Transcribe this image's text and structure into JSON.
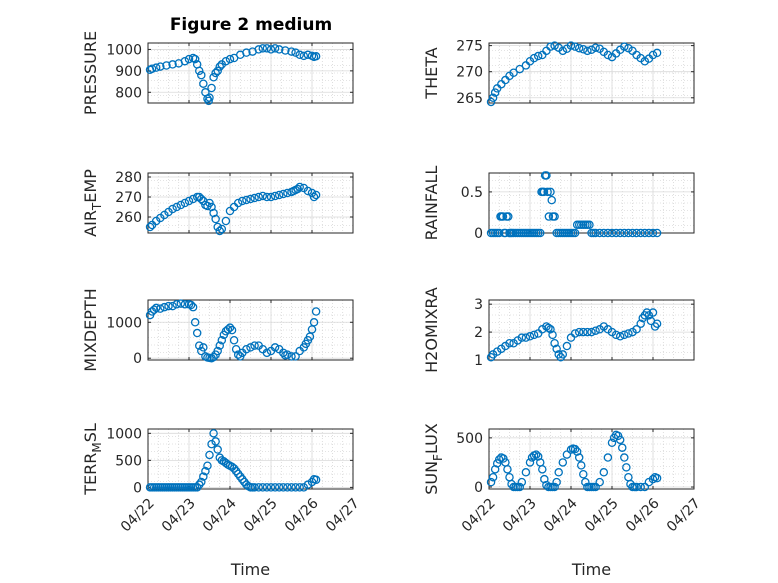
{
  "figure": {
    "title": "Figure 2 medium",
    "colors": {
      "marker": "#0072BD",
      "axis": "#262626",
      "grid": "#c8c8c8",
      "background": "#ffffff"
    }
  },
  "chart_data": [
    {
      "type": "scatter",
      "ylabel_parts": [
        "PRESSURE"
      ],
      "xlabel": "",
      "ylim": [
        750,
        1030
      ],
      "yticks": [
        800,
        900,
        1000
      ],
      "xlim": [
        0,
        5
      ],
      "xticklabels": [],
      "grid": "on",
      "marker": "open-circle",
      "x": [
        0.05,
        0.1,
        0.2,
        0.3,
        0.45,
        0.6,
        0.75,
        0.9,
        1.0,
        1.1,
        1.15,
        1.2,
        1.25,
        1.3,
        1.35,
        1.4,
        1.45,
        1.48,
        1.5,
        1.55,
        1.6,
        1.65,
        1.7,
        1.75,
        1.8,
        1.9,
        2.0,
        2.1,
        2.25,
        2.4,
        2.55,
        2.7,
        2.8,
        2.9,
        3.0,
        3.1,
        3.2,
        3.35,
        3.5,
        3.6,
        3.7,
        3.8,
        3.9,
        4.0,
        4.05,
        4.1
      ],
      "y": [
        905,
        910,
        915,
        920,
        925,
        930,
        935,
        945,
        955,
        960,
        955,
        930,
        900,
        880,
        840,
        800,
        770,
        760,
        775,
        820,
        870,
        890,
        900,
        920,
        930,
        945,
        955,
        960,
        975,
        985,
        990,
        1000,
        1005,
        1005,
        1000,
        1005,
        1000,
        995,
        990,
        985,
        975,
        970,
        975,
        970,
        965,
        968
      ]
    },
    {
      "type": "scatter",
      "ylabel_parts": [
        "THETA"
      ],
      "xlabel": "",
      "ylim": [
        264,
        275.5
      ],
      "yticks": [
        265,
        270,
        275
      ],
      "xlim": [
        0,
        5
      ],
      "xticklabels": [],
      "grid": "on",
      "marker": "open-circle",
      "x": [
        0.05,
        0.1,
        0.15,
        0.2,
        0.3,
        0.4,
        0.5,
        0.6,
        0.75,
        0.9,
        1.0,
        1.1,
        1.2,
        1.3,
        1.4,
        1.5,
        1.6,
        1.7,
        1.8,
        1.9,
        2.0,
        2.1,
        2.2,
        2.3,
        2.4,
        2.5,
        2.6,
        2.7,
        2.8,
        2.9,
        3.0,
        3.1,
        3.2,
        3.3,
        3.4,
        3.5,
        3.6,
        3.7,
        3.8,
        3.9,
        4.0,
        4.1
      ],
      "y": [
        264.2,
        265,
        266,
        266.8,
        267.6,
        268.4,
        269.2,
        269.8,
        270.5,
        271.2,
        272,
        272.6,
        273,
        273.2,
        274,
        274.8,
        275,
        274.6,
        274,
        274.4,
        275,
        274.8,
        274.5,
        274.3,
        274,
        274.2,
        274.6,
        274.4,
        273.8,
        273.2,
        272.8,
        273.5,
        274.2,
        274.8,
        274.5,
        274,
        273.2,
        272.6,
        272,
        272.5,
        273.2,
        273.6
      ]
    },
    {
      "type": "scatter",
      "ylabel_parts": [
        "AIR",
        "T",
        "EMP"
      ],
      "xlabel": "",
      "ylim": [
        252,
        282
      ],
      "yticks": [
        260,
        270,
        280
      ],
      "xlim": [
        0,
        5
      ],
      "xticklabels": [],
      "grid": "on",
      "marker": "open-circle",
      "x": [
        0.05,
        0.1,
        0.2,
        0.3,
        0.4,
        0.5,
        0.6,
        0.7,
        0.8,
        0.9,
        1.0,
        1.1,
        1.2,
        1.25,
        1.3,
        1.35,
        1.4,
        1.45,
        1.5,
        1.55,
        1.6,
        1.65,
        1.7,
        1.75,
        1.8,
        1.9,
        2.0,
        2.1,
        2.2,
        2.3,
        2.4,
        2.5,
        2.6,
        2.7,
        2.8,
        2.9,
        3.0,
        3.1,
        3.2,
        3.3,
        3.4,
        3.5,
        3.55,
        3.6,
        3.65,
        3.7,
        3.8,
        3.9,
        4.0,
        4.05,
        4.1
      ],
      "y": [
        255,
        256,
        258,
        259.5,
        261,
        262.5,
        264,
        265,
        266,
        267,
        268,
        269,
        270,
        270,
        269,
        268,
        266,
        265.5,
        267,
        265,
        262,
        259,
        255,
        253,
        254,
        258,
        263,
        265,
        267,
        268,
        268.5,
        269,
        269.5,
        270,
        270.5,
        270,
        270,
        270.5,
        271,
        271.5,
        272,
        272.5,
        273,
        273.5,
        274,
        275,
        274.5,
        273,
        272,
        270,
        271
      ]
    },
    {
      "type": "scatter",
      "ylabel_parts": [
        "RAINFALL"
      ],
      "xlabel": "",
      "ylim": [
        0,
        0.73
      ],
      "yticks": [
        0,
        0.5
      ],
      "xlim": [
        0,
        5
      ],
      "xticklabels": [],
      "grid": "on",
      "marker": "open-circle",
      "x": [
        0.05,
        0.1,
        0.15,
        0.2,
        0.25,
        0.28,
        0.31,
        0.34,
        0.37,
        0.4,
        0.43,
        0.47,
        0.5,
        0.53,
        0.56,
        0.6,
        0.65,
        0.7,
        0.75,
        0.8,
        0.85,
        0.9,
        0.95,
        1.0,
        1.05,
        1.1,
        1.15,
        1.2,
        1.25,
        1.28,
        1.31,
        1.34,
        1.37,
        1.4,
        1.43,
        1.46,
        1.5,
        1.53,
        1.56,
        1.6,
        1.65,
        1.7,
        1.75,
        1.8,
        1.85,
        1.9,
        1.95,
        2.0,
        2.05,
        2.1,
        2.15,
        2.2,
        2.25,
        2.3,
        2.35,
        2.4,
        2.45,
        2.5,
        2.55,
        2.6,
        2.7,
        2.8,
        2.9,
        3.0,
        3.1,
        3.2,
        3.3,
        3.4,
        3.5,
        3.6,
        3.7,
        3.8,
        3.9,
        4.0,
        4.1
      ],
      "y": [
        0,
        0,
        0,
        0,
        0,
        0.2,
        0.2,
        0.2,
        0,
        0,
        0.2,
        0.2,
        0,
        0,
        0,
        0,
        0,
        0,
        0,
        0,
        0,
        0,
        0,
        0,
        0,
        0,
        0,
        0,
        0,
        0.5,
        0.5,
        0.5,
        0.7,
        0.7,
        0.5,
        0.2,
        0.5,
        0.4,
        0.2,
        0.2,
        0,
        0,
        0,
        0,
        0,
        0,
        0,
        0,
        0,
        0,
        0.1,
        0.1,
        0.1,
        0.1,
        0.1,
        0.1,
        0.1,
        0,
        0,
        0,
        0,
        0,
        0,
        0,
        0,
        0,
        0,
        0,
        0,
        0,
        0,
        0,
        0,
        0,
        0
      ]
    },
    {
      "type": "scatter",
      "ylabel_parts": [
        "MIXDEPTH"
      ],
      "xlabel": "",
      "ylim": [
        -50,
        1620
      ],
      "yticks": [
        0,
        1000
      ],
      "xlim": [
        0,
        5
      ],
      "xticklabels": [],
      "grid": "on",
      "marker": "open-circle",
      "x": [
        0.05,
        0.1,
        0.15,
        0.2,
        0.3,
        0.4,
        0.5,
        0.6,
        0.7,
        0.8,
        0.9,
        1.0,
        1.05,
        1.1,
        1.15,
        1.2,
        1.25,
        1.3,
        1.35,
        1.4,
        1.45,
        1.5,
        1.55,
        1.6,
        1.65,
        1.7,
        1.75,
        1.8,
        1.85,
        1.9,
        1.95,
        2.0,
        2.05,
        2.1,
        2.15,
        2.2,
        2.25,
        2.3,
        2.4,
        2.5,
        2.6,
        2.7,
        2.8,
        2.9,
        3.0,
        3.1,
        3.2,
        3.3,
        3.35,
        3.4,
        3.5,
        3.6,
        3.7,
        3.8,
        3.85,
        3.9,
        3.95,
        4.0,
        4.05,
        4.1
      ],
      "y": [
        1200,
        1300,
        1350,
        1400,
        1380,
        1420,
        1450,
        1450,
        1500,
        1520,
        1500,
        1500,
        1480,
        1420,
        1000,
        700,
        350,
        200,
        300,
        50,
        20,
        10,
        0,
        30,
        100,
        200,
        350,
        500,
        650,
        750,
        800,
        850,
        780,
        500,
        250,
        100,
        50,
        150,
        250,
        300,
        350,
        350,
        250,
        150,
        200,
        300,
        250,
        150,
        80,
        100,
        50,
        50,
        200,
        300,
        400,
        500,
        600,
        800,
        1000,
        1300
      ]
    },
    {
      "type": "scatter",
      "ylabel_parts": [
        "H2OMIXRA"
      ],
      "xlabel": "",
      "ylim": [
        1,
        3.15
      ],
      "yticks": [
        1,
        2,
        3
      ],
      "xlim": [
        0,
        5
      ],
      "xticklabels": [],
      "grid": "on",
      "marker": "open-circle",
      "x": [
        0.05,
        0.1,
        0.2,
        0.3,
        0.4,
        0.5,
        0.6,
        0.7,
        0.8,
        0.9,
        1.0,
        1.1,
        1.2,
        1.3,
        1.4,
        1.45,
        1.5,
        1.55,
        1.6,
        1.65,
        1.7,
        1.75,
        1.8,
        1.9,
        2.0,
        2.1,
        2.2,
        2.3,
        2.4,
        2.5,
        2.6,
        2.7,
        2.8,
        2.9,
        3.0,
        3.1,
        3.2,
        3.3,
        3.4,
        3.5,
        3.6,
        3.7,
        3.75,
        3.8,
        3.85,
        3.9,
        3.95,
        4.0,
        4.05,
        4.1
      ],
      "y": [
        1.1,
        1.2,
        1.3,
        1.4,
        1.5,
        1.6,
        1.6,
        1.7,
        1.8,
        1.8,
        1.85,
        1.9,
        1.95,
        2.1,
        2.2,
        2.15,
        2.1,
        1.9,
        1.6,
        1.4,
        1.2,
        1.1,
        1.2,
        1.5,
        1.8,
        1.95,
        2.0,
        2.0,
        2.0,
        2.0,
        2.05,
        2.1,
        2.2,
        2.1,
        2.0,
        1.9,
        1.85,
        1.9,
        1.95,
        2.0,
        2.1,
        2.3,
        2.5,
        2.6,
        2.7,
        2.6,
        2.4,
        2.7,
        2.2,
        2.3
      ]
    },
    {
      "type": "scatter",
      "ylabel_parts": [
        "TERR",
        "M",
        "SL"
      ],
      "xlabel": "Time",
      "ylim": [
        -30,
        1080
      ],
      "yticks": [
        0,
        500,
        1000
      ],
      "xlim": [
        0,
        5
      ],
      "xticklabels": [
        "04/22",
        "04/23",
        "04/24",
        "04/25",
        "04/26",
        "04/27"
      ],
      "grid": "on",
      "marker": "open-circle",
      "x": [
        0.05,
        0.1,
        0.15,
        0.2,
        0.25,
        0.3,
        0.35,
        0.4,
        0.45,
        0.5,
        0.55,
        0.6,
        0.65,
        0.7,
        0.75,
        0.8,
        0.85,
        0.9,
        0.95,
        1.0,
        1.05,
        1.1,
        1.15,
        1.2,
        1.25,
        1.3,
        1.35,
        1.4,
        1.45,
        1.5,
        1.55,
        1.6,
        1.65,
        1.7,
        1.75,
        1.8,
        1.85,
        1.9,
        1.95,
        2.0,
        2.05,
        2.1,
        2.15,
        2.2,
        2.25,
        2.3,
        2.35,
        2.4,
        2.45,
        2.5,
        2.55,
        2.6,
        2.7,
        2.8,
        2.9,
        3.0,
        3.1,
        3.2,
        3.3,
        3.4,
        3.5,
        3.6,
        3.7,
        3.8,
        3.9,
        4.0,
        4.05,
        4.1
      ],
      "y": [
        0,
        0,
        0,
        0,
        0,
        0,
        0,
        0,
        0,
        0,
        0,
        0,
        0,
        0,
        0,
        0,
        0,
        0,
        0,
        0,
        0,
        0,
        0,
        0,
        50,
        100,
        200,
        300,
        400,
        600,
        800,
        1000,
        850,
        700,
        550,
        500,
        480,
        450,
        420,
        400,
        380,
        350,
        300,
        250,
        200,
        150,
        100,
        50,
        20,
        0,
        0,
        0,
        0,
        0,
        0,
        0,
        0,
        0,
        0,
        0,
        0,
        0,
        0,
        0,
        50,
        100,
        150,
        140
      ]
    },
    {
      "type": "scatter",
      "ylabel_parts": [
        "SUN",
        "F",
        "LUX"
      ],
      "xlabel": "Time",
      "ylim": [
        -20,
        590
      ],
      "yticks": [
        0,
        500
      ],
      "xlim": [
        0,
        5
      ],
      "xticklabels": [
        "04/22",
        "04/23",
        "04/24",
        "04/25",
        "04/26",
        "04/27"
      ],
      "grid": "on",
      "marker": "open-circle",
      "x": [
        0.05,
        0.1,
        0.15,
        0.2,
        0.25,
        0.3,
        0.35,
        0.4,
        0.45,
        0.5,
        0.55,
        0.6,
        0.65,
        0.7,
        0.75,
        0.8,
        0.9,
        1.0,
        1.05,
        1.1,
        1.15,
        1.2,
        1.25,
        1.3,
        1.35,
        1.4,
        1.45,
        1.5,
        1.55,
        1.6,
        1.65,
        1.7,
        1.8,
        1.9,
        2.0,
        2.05,
        2.1,
        2.15,
        2.2,
        2.25,
        2.3,
        2.35,
        2.4,
        2.45,
        2.5,
        2.55,
        2.6,
        2.7,
        2.8,
        2.9,
        3.0,
        3.05,
        3.1,
        3.15,
        3.2,
        3.25,
        3.3,
        3.35,
        3.4,
        3.45,
        3.5,
        3.55,
        3.6,
        3.7,
        3.8,
        3.9,
        4.0,
        4.05,
        4.1
      ],
      "y": [
        50,
        100,
        180,
        240,
        280,
        300,
        290,
        250,
        180,
        100,
        30,
        0,
        0,
        0,
        0,
        50,
        150,
        250,
        300,
        320,
        330,
        310,
        250,
        180,
        80,
        20,
        0,
        0,
        0,
        0,
        50,
        150,
        250,
        330,
        380,
        390,
        385,
        360,
        300,
        220,
        130,
        50,
        0,
        0,
        0,
        0,
        0,
        50,
        150,
        300,
        450,
        500,
        530,
        520,
        480,
        400,
        300,
        200,
        100,
        30,
        0,
        0,
        0,
        0,
        0,
        50,
        80,
        100,
        90
      ]
    }
  ]
}
